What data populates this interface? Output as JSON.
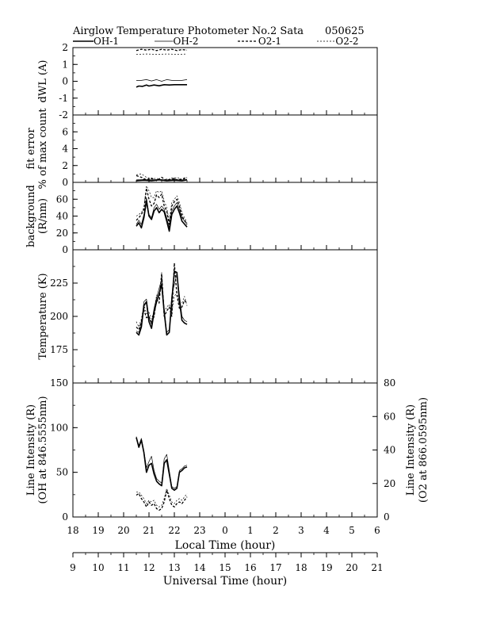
{
  "header": {
    "title": "Airglow Temperature Photometer No.2  Sata",
    "date": "050625"
  },
  "legend": [
    {
      "label": "OH-1",
      "style": "solid-bold"
    },
    {
      "label": "OH-2",
      "style": "solid-thin"
    },
    {
      "label": "O2-1",
      "style": "dashed-bold"
    },
    {
      "label": "O2-2",
      "style": "dashed-thin"
    }
  ],
  "colors": {
    "ink": "#000000",
    "background": "#ffffff"
  },
  "chart_data": [
    {
      "type": "line",
      "ylabel": "dWL  (A)",
      "ylim": [
        -2,
        2
      ],
      "yticks": [
        -2,
        -1,
        0,
        1,
        2
      ],
      "series": [
        {
          "name": "OH-1",
          "x": [
            20.5,
            20.6,
            20.75,
            20.9,
            21.0,
            21.2,
            21.4,
            21.6,
            21.8,
            22.0,
            22.2,
            22.5
          ],
          "y": [
            -0.35,
            -0.28,
            -0.3,
            -0.22,
            -0.28,
            -0.22,
            -0.27,
            -0.2,
            -0.22,
            -0.2,
            -0.2,
            -0.2
          ]
        },
        {
          "name": "OH-2",
          "x": [
            20.5,
            20.7,
            20.9,
            21.1,
            21.3,
            21.5,
            21.7,
            21.9,
            22.1,
            22.3,
            22.5
          ],
          "y": [
            0.05,
            0.05,
            0.1,
            0.02,
            0.1,
            0.0,
            0.1,
            0.05,
            0.05,
            0.05,
            0.1
          ]
        },
        {
          "name": "O2-1",
          "x": [
            20.5,
            20.7,
            20.9,
            21.1,
            21.3,
            21.5,
            21.7,
            21.9,
            22.1,
            22.3,
            22.5
          ],
          "y": [
            1.82,
            1.9,
            1.85,
            1.9,
            1.82,
            1.9,
            1.85,
            1.9,
            1.82,
            1.88,
            1.85
          ]
        },
        {
          "name": "O2-2",
          "x": [
            20.5,
            20.9,
            21.3,
            21.7,
            22.1,
            22.5
          ],
          "y": [
            1.6,
            1.62,
            1.6,
            1.62,
            1.6,
            1.62
          ]
        }
      ]
    },
    {
      "type": "line",
      "ylabel": "fit error",
      "ylabel2": "% of max count",
      "ylim": [
        0,
        8
      ],
      "yticks": [
        0,
        2,
        4,
        6
      ],
      "series": [
        {
          "name": "OH-1",
          "x": [
            20.5,
            20.8,
            21.1,
            21.4,
            21.7,
            22.0,
            22.3,
            22.5
          ],
          "y": [
            0.2,
            0.25,
            0.2,
            0.3,
            0.2,
            0.25,
            0.2,
            0.3
          ]
        },
        {
          "name": "OH-2",
          "x": [
            20.5,
            20.8,
            21.1,
            21.4,
            21.7,
            22.0,
            22.3,
            22.5
          ],
          "y": [
            0.3,
            0.35,
            0.3,
            0.35,
            0.3,
            0.35,
            0.3,
            0.35
          ]
        },
        {
          "name": "O2-1",
          "x": [
            20.5,
            20.7,
            20.9,
            21.1,
            21.3,
            21.5,
            21.7,
            21.9,
            22.1,
            22.3,
            22.5
          ],
          "y": [
            0.8,
            0.6,
            0.3,
            0.5,
            0.2,
            0.6,
            0.2,
            0.5,
            0.3,
            0.4,
            0.6
          ]
        },
        {
          "name": "O2-2",
          "x": [
            20.5,
            20.7,
            20.9,
            21.1,
            21.3,
            21.5,
            21.7,
            21.9,
            22.1,
            22.3,
            22.5
          ],
          "y": [
            0.9,
            1.0,
            0.6,
            0.4,
            0.5,
            0.2,
            0.4,
            0.3,
            0.6,
            0.3,
            0.5
          ]
        }
      ]
    },
    {
      "type": "line",
      "ylabel": "background",
      "ylabel2": "(R/nm)",
      "ylim": [
        0,
        80
      ],
      "yticks": [
        0,
        20,
        40,
        60
      ],
      "series": [
        {
          "name": "OH-1",
          "x": [
            20.5,
            20.6,
            20.7,
            20.8,
            20.9,
            21.0,
            21.1,
            21.2,
            21.3,
            21.4,
            21.5,
            21.6,
            21.7,
            21.8,
            21.9,
            22.0,
            22.1,
            22.2,
            22.3,
            22.5
          ],
          "y": [
            28,
            32,
            26,
            38,
            58,
            40,
            36,
            46,
            50,
            44,
            48,
            45,
            34,
            22,
            42,
            48,
            52,
            44,
            34,
            27
          ]
        },
        {
          "name": "OH-2",
          "x": [
            20.5,
            20.6,
            20.7,
            20.8,
            20.9,
            21.0,
            21.1,
            21.2,
            21.3,
            21.4,
            21.5,
            21.6,
            21.7,
            21.8,
            21.9,
            22.0,
            22.1,
            22.2,
            22.3,
            22.5
          ],
          "y": [
            30,
            35,
            30,
            42,
            62,
            42,
            38,
            50,
            54,
            48,
            52,
            48,
            38,
            26,
            46,
            52,
            56,
            48,
            38,
            30
          ]
        },
        {
          "name": "O2-1",
          "x": [
            20.5,
            20.6,
            20.7,
            20.8,
            20.9,
            21.0,
            21.1,
            21.2,
            21.3,
            21.4,
            21.5,
            21.6,
            21.7,
            21.8,
            21.9,
            22.0,
            22.1,
            22.2,
            22.3,
            22.5
          ],
          "y": [
            35,
            38,
            42,
            48,
            73,
            60,
            52,
            55,
            65,
            62,
            66,
            52,
            46,
            30,
            52,
            57,
            60,
            52,
            40,
            30
          ]
        },
        {
          "name": "O2-2",
          "x": [
            20.5,
            20.6,
            20.7,
            20.8,
            20.9,
            21.0,
            21.1,
            21.2,
            21.3,
            21.4,
            21.5,
            21.6,
            21.7,
            21.8,
            21.9,
            22.0,
            22.1,
            22.2,
            22.3,
            22.5
          ],
          "y": [
            40,
            42,
            44,
            50,
            76,
            70,
            62,
            62,
            70,
            68,
            70,
            58,
            50,
            34,
            56,
            60,
            64,
            56,
            44,
            32
          ]
        }
      ]
    },
    {
      "type": "line",
      "ylabel": "Temperature  (K)",
      "ylim": [
        150,
        250
      ],
      "yticks": [
        175,
        200,
        225
      ],
      "series": [
        {
          "name": "OH-1",
          "x": [
            20.5,
            20.6,
            20.7,
            20.8,
            20.9,
            21.0,
            21.1,
            21.2,
            21.3,
            21.4,
            21.5,
            21.6,
            21.7,
            21.8,
            21.9,
            22.0,
            22.1,
            22.2,
            22.3,
            22.4,
            22.5
          ],
          "y": [
            188,
            186,
            192,
            208,
            211,
            196,
            191,
            203,
            211,
            217,
            224,
            203,
            186,
            188,
            212,
            234,
            233,
            212,
            197,
            195,
            194
          ]
        },
        {
          "name": "OH-2",
          "x": [
            20.5,
            20.6,
            20.7,
            20.8,
            20.9,
            21.0,
            21.1,
            21.2,
            21.3,
            21.4,
            21.5,
            21.6,
            21.7,
            21.8,
            21.9,
            22.0,
            22.1,
            22.2,
            22.3,
            22.4,
            22.5
          ],
          "y": [
            189,
            188,
            194,
            211,
            213,
            199,
            194,
            206,
            214,
            221,
            228,
            206,
            188,
            190,
            216,
            224,
            232,
            216,
            200,
            197,
            196
          ]
        },
        {
          "name": "O2-1",
          "x": [
            20.5,
            20.6,
            20.7,
            20.8,
            20.9,
            21.0,
            21.1,
            21.2,
            21.3,
            21.4,
            21.5,
            21.6,
            21.7,
            21.8,
            21.9,
            22.0,
            22.1,
            22.2,
            22.3,
            22.4,
            22.5
          ],
          "y": [
            192,
            190,
            196,
            205,
            199,
            200,
            195,
            200,
            213,
            210,
            232,
            200,
            204,
            207,
            200,
            240,
            216,
            206,
            207,
            212,
            210
          ]
        },
        {
          "name": "O2-2",
          "x": [
            20.5,
            20.6,
            20.7,
            20.8,
            20.9,
            21.0,
            21.1,
            21.2,
            21.3,
            21.4,
            21.5,
            21.6,
            21.7,
            21.8,
            21.9,
            22.0,
            22.1,
            22.2,
            22.3,
            22.4,
            22.5
          ],
          "y": [
            196,
            192,
            198,
            209,
            202,
            203,
            198,
            204,
            216,
            214,
            233,
            203,
            207,
            209,
            203,
            215,
            218,
            209,
            210,
            215,
            208
          ]
        }
      ]
    },
    {
      "type": "line",
      "ylabel": "Line Intensity (R)",
      "ylabel2": "(OH at 846.5555nm)",
      "ylim": [
        0,
        150
      ],
      "yticks": [
        0,
        50,
        100,
        150
      ],
      "ylabel_right": "Line Intensity (R)",
      "ylabel_right2": "(O2 at 866.0595nm)",
      "ylim_right": [
        0,
        80
      ],
      "yticks_right": [
        0,
        20,
        40,
        60,
        80
      ],
      "series": [
        {
          "name": "OH-1",
          "axis": "left",
          "x": [
            20.5,
            20.6,
            20.7,
            20.8,
            20.9,
            21.0,
            21.1,
            21.2,
            21.3,
            21.4,
            21.5,
            21.6,
            21.7,
            21.8,
            21.9,
            22.0,
            22.1,
            22.2,
            22.3,
            22.4,
            22.5
          ],
          "y": [
            89,
            78,
            86,
            72,
            50,
            58,
            60,
            48,
            40,
            37,
            35,
            60,
            64,
            48,
            32,
            30,
            32,
            50,
            52,
            55,
            56
          ]
        },
        {
          "name": "OH-2",
          "axis": "left",
          "x": [
            20.5,
            20.6,
            20.7,
            20.8,
            20.9,
            21.0,
            21.1,
            21.2,
            21.3,
            21.4,
            21.5,
            21.6,
            21.7,
            21.8,
            21.9,
            22.0,
            22.1,
            22.2,
            22.3,
            22.4,
            22.5
          ],
          "y": [
            90,
            80,
            88,
            74,
            55,
            62,
            68,
            52,
            43,
            40,
            38,
            65,
            70,
            52,
            34,
            32,
            34,
            52,
            54,
            57,
            58
          ]
        },
        {
          "name": "O2-1",
          "axis": "right",
          "x": [
            20.5,
            20.6,
            20.7,
            20.8,
            20.9,
            21.0,
            21.1,
            21.2,
            21.3,
            21.4,
            21.5,
            21.6,
            21.7,
            21.8,
            21.9,
            22.0,
            22.1,
            22.2,
            22.3,
            22.4,
            22.5
          ],
          "y": [
            13,
            14,
            11,
            9,
            6,
            9,
            7,
            8,
            5,
            4,
            5,
            9,
            16,
            11,
            7,
            6,
            8,
            9,
            8,
            10,
            12
          ]
        },
        {
          "name": "O2-2",
          "axis": "right",
          "x": [
            20.5,
            20.6,
            20.7,
            20.8,
            20.9,
            21.0,
            21.1,
            21.2,
            21.3,
            21.4,
            21.5,
            21.6,
            21.7,
            21.8,
            21.9,
            22.0,
            22.1,
            22.2,
            22.3,
            22.4,
            22.5
          ],
          "y": [
            15,
            15,
            13,
            11,
            8,
            10,
            9,
            10,
            7,
            6,
            7,
            11,
            17,
            13,
            9,
            8,
            10,
            11,
            10,
            12,
            14
          ]
        }
      ]
    }
  ],
  "xaxis_local": {
    "label": "Local Time (hour)",
    "range": [
      18,
      30
    ],
    "tick_labels": [
      "18",
      "19",
      "20",
      "21",
      "22",
      "23",
      "0",
      "1",
      "2",
      "3",
      "4",
      "5",
      "6"
    ]
  },
  "xaxis_universal": {
    "label": "Universal Time (hour)",
    "range": [
      9,
      21
    ],
    "tick_labels": [
      "9",
      "10",
      "11",
      "12",
      "13",
      "14",
      "15",
      "16",
      "17",
      "18",
      "19",
      "20",
      "21"
    ]
  }
}
